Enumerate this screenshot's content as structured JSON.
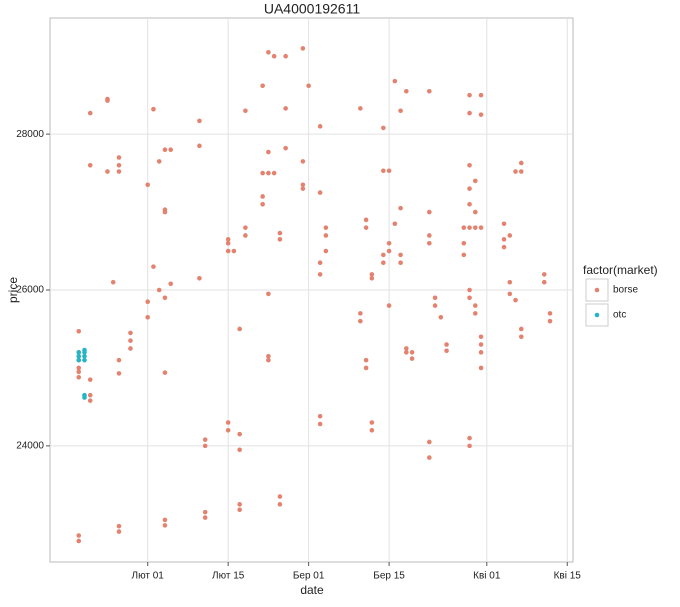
{
  "chart_data": {
    "type": "scatter",
    "title": "UA4000192611",
    "x_label": "date",
    "y_label": "price",
    "legend_title": "factor(market)",
    "xlim": [
      "01-15",
      "04-16"
    ],
    "xticks": [
      {
        "value": "02-01",
        "label": "Лют 01"
      },
      {
        "value": "02-15",
        "label": "Лют 15"
      },
      {
        "value": "03-01",
        "label": "Бер 01"
      },
      {
        "value": "03-15",
        "label": "Бер 15"
      },
      {
        "value": "04-01",
        "label": "Кві 01"
      },
      {
        "value": "04-15",
        "label": "Кві 15"
      }
    ],
    "ylim": [
      22510,
      29490
    ],
    "yticks": [
      24000,
      26000,
      28000
    ],
    "grid": true,
    "series": [
      {
        "name": "borse",
        "color": "#e3826f",
        "x": [
          "01-20",
          "01-20",
          "01-20",
          "01-20",
          "01-20",
          "01-20",
          "01-20",
          "01-20",
          "01-22",
          "01-22",
          "01-22",
          "01-22",
          "01-22",
          "01-25",
          "01-25",
          "01-25",
          "01-26",
          "01-27",
          "01-27",
          "01-27",
          "01-27",
          "01-27",
          "01-27",
          "01-27",
          "01-29",
          "01-29",
          "01-29",
          "02-01",
          "02-01",
          "02-01",
          "02-02",
          "02-02",
          "02-03",
          "02-03",
          "02-04",
          "02-04",
          "02-04",
          "02-04",
          "02-04",
          "02-04",
          "02-04",
          "02-05",
          "02-05",
          "02-10",
          "02-10",
          "02-10",
          "02-11",
          "02-11",
          "02-11",
          "02-11",
          "02-15",
          "02-15",
          "02-15",
          "02-15",
          "02-15",
          "02-16",
          "02-17",
          "02-17",
          "02-17",
          "02-17",
          "02-17",
          "02-18",
          "02-18",
          "02-18",
          "02-21",
          "02-21",
          "02-21",
          "02-21",
          "02-22",
          "02-22",
          "02-22",
          "02-22",
          "02-22",
          "02-22",
          "02-23",
          "02-23",
          "02-24",
          "02-24",
          "02-24",
          "02-24",
          "02-25",
          "02-25",
          "02-25",
          "02-28",
          "02-28",
          "02-28",
          "02-28",
          "03-01",
          "03-03",
          "03-03",
          "03-03",
          "03-03",
          "03-03",
          "03-03",
          "03-04",
          "03-04",
          "03-04",
          "03-10",
          "03-10",
          "03-10",
          "03-11",
          "03-11",
          "03-11",
          "03-11",
          "03-12",
          "03-12",
          "03-12",
          "03-12",
          "03-14",
          "03-14",
          "03-14",
          "03-14",
          "03-15",
          "03-15",
          "03-15",
          "03-15",
          "03-16",
          "03-16",
          "03-17",
          "03-17",
          "03-17",
          "03-17",
          "03-18",
          "03-18",
          "03-18",
          "03-19",
          "03-19",
          "03-22",
          "03-22",
          "03-22",
          "03-22",
          "03-22",
          "03-22",
          "03-23",
          "03-23",
          "03-24",
          "03-25",
          "03-25",
          "03-28",
          "03-28",
          "03-28",
          "03-29",
          "03-29",
          "03-29",
          "03-29",
          "03-29",
          "03-29",
          "03-29",
          "03-29",
          "03-29",
          "03-29",
          "03-30",
          "03-30",
          "03-30",
          "03-30",
          "03-30",
          "03-31",
          "03-31",
          "03-31",
          "03-31",
          "03-31",
          "03-31",
          "03-31",
          "04-04",
          "04-04",
          "04-04",
          "04-05",
          "04-05",
          "04-05",
          "04-06",
          "04-06",
          "04-07",
          "04-07",
          "04-07",
          "04-07",
          "04-11",
          "04-11",
          "04-12",
          "04-12"
        ],
        "values": [
          25470,
          25200,
          25100,
          25000,
          24950,
          24880,
          22850,
          22780,
          28270,
          27600,
          24850,
          24650,
          24580,
          28450,
          28430,
          27520,
          26100,
          27700,
          27600,
          27520,
          25100,
          24930,
          22970,
          22900,
          25450,
          25350,
          25250,
          27350,
          25850,
          25650,
          28320,
          26300,
          27650,
          26000,
          27800,
          27030,
          27000,
          25900,
          24940,
          23050,
          22980,
          27800,
          26080,
          28170,
          27850,
          26150,
          24080,
          24000,
          23150,
          23080,
          26650,
          26600,
          26500,
          24300,
          24200,
          26500,
          25500,
          24150,
          23950,
          23250,
          23180,
          28300,
          26800,
          26700,
          28620,
          27500,
          27200,
          27100,
          29050,
          27770,
          27500,
          25950,
          25150,
          25100,
          29000,
          27500,
          26730,
          26650,
          23350,
          23250,
          29000,
          28330,
          27820,
          29100,
          27650,
          27350,
          27300,
          28620,
          28100,
          27250,
          26350,
          26200,
          24380,
          24280,
          26800,
          26700,
          26500,
          28330,
          25700,
          25600,
          26900,
          26800,
          25100,
          25000,
          26200,
          26150,
          24300,
          24200,
          28080,
          27530,
          26450,
          26350,
          27530,
          26600,
          26500,
          25800,
          28680,
          26850,
          28300,
          27050,
          26450,
          26350,
          28550,
          25250,
          25200,
          25200,
          25120,
          28550,
          27000,
          26700,
          26600,
          24050,
          23850,
          25900,
          25800,
          25650,
          25300,
          25220,
          26800,
          26600,
          26450,
          28500,
          28270,
          27600,
          27300,
          27100,
          26800,
          26000,
          25900,
          24100,
          24000,
          27400,
          27000,
          26800,
          25800,
          25700,
          28500,
          28250,
          26800,
          25400,
          25300,
          25200,
          25000,
          26850,
          26650,
          26550,
          26700,
          26100,
          25950,
          27520,
          25870,
          27630,
          27520,
          25500,
          25400,
          26200,
          26100,
          25700,
          25600
        ]
      },
      {
        "name": "otc",
        "color": "#25b5c6",
        "x": [
          "01-20",
          "01-20",
          "01-20",
          "01-21",
          "01-21",
          "01-21",
          "01-21",
          "01-21",
          "01-21"
        ],
        "values": [
          25200,
          25150,
          25100,
          25230,
          25200,
          25150,
          25100,
          24650,
          24620
        ]
      }
    ]
  }
}
